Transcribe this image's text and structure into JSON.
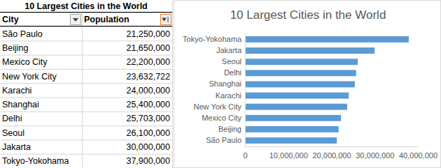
{
  "table": {
    "title": "10 Largest Cities in the World",
    "header": [
      "City",
      "Population"
    ],
    "rows": [
      [
        "São Paulo",
        "21,250,000"
      ],
      [
        "Beijing",
        "21,650,000"
      ],
      [
        "Mexico City",
        "22,200,000"
      ],
      [
        "New York City",
        "23,632,722"
      ],
      [
        "Karachi",
        "24,000,000"
      ],
      [
        "Shanghai",
        "25,400,000"
      ],
      [
        "Delhi",
        "25,703,000"
      ],
      [
        "Seoul",
        "26,100,000"
      ],
      [
        "Jakarta",
        "30,000,000"
      ],
      [
        "Tokyo-Yokohama",
        "37,900,000"
      ]
    ]
  },
  "chart_data": {
    "type": "bar",
    "title": "10 Largest Cities in the World",
    "orientation": "horizontal",
    "categories": [
      "São Paulo",
      "Beijing",
      "Mexico City",
      "New York City",
      "Karachi",
      "Shanghai",
      "Delhi",
      "Seoul",
      "Jakarta",
      "Tokyo-Yokohama"
    ],
    "values": [
      21250000,
      21650000,
      22200000,
      23632722,
      24000000,
      25400000,
      25703000,
      26100000,
      30000000,
      37900000
    ],
    "color": "#5b9bd5",
    "xlim": [
      0,
      40000000
    ],
    "xticks": [
      0,
      {
        "value": 10000000,
        "label": "10,000,000"
      },
      {
        "value": 20000000,
        "label": "20,000,000"
      },
      {
        "value": 30000000,
        "label": "30,000,000"
      },
      {
        "value": 40000000,
        "label": "40,000,000"
      }
    ],
    "grid": false
  }
}
